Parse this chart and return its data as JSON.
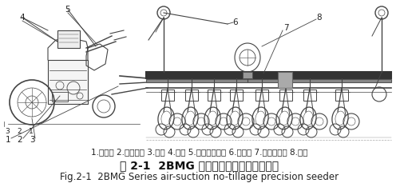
{
  "title_cn": "图 2-1  2BMG 系列气吸式免耕精密播种机",
  "title_en": "Fig.2-1  2BMG Series air-suction no-tillage precision seeder",
  "caption_line": "1.悬挂架 2.播种单体 3.地轮 4.肥筱 5.施肥部件装配 6.画印器 7.方管支撑架 8.风机",
  "bg_color": "#ffffff",
  "title_cn_fontsize": 10,
  "title_en_fontsize": 8.5,
  "caption_fontsize": 7.5,
  "fig_width": 5.01,
  "fig_height": 2.39,
  "dpi": 100,
  "line_color": "#444444",
  "label_fontsize": 7.5
}
